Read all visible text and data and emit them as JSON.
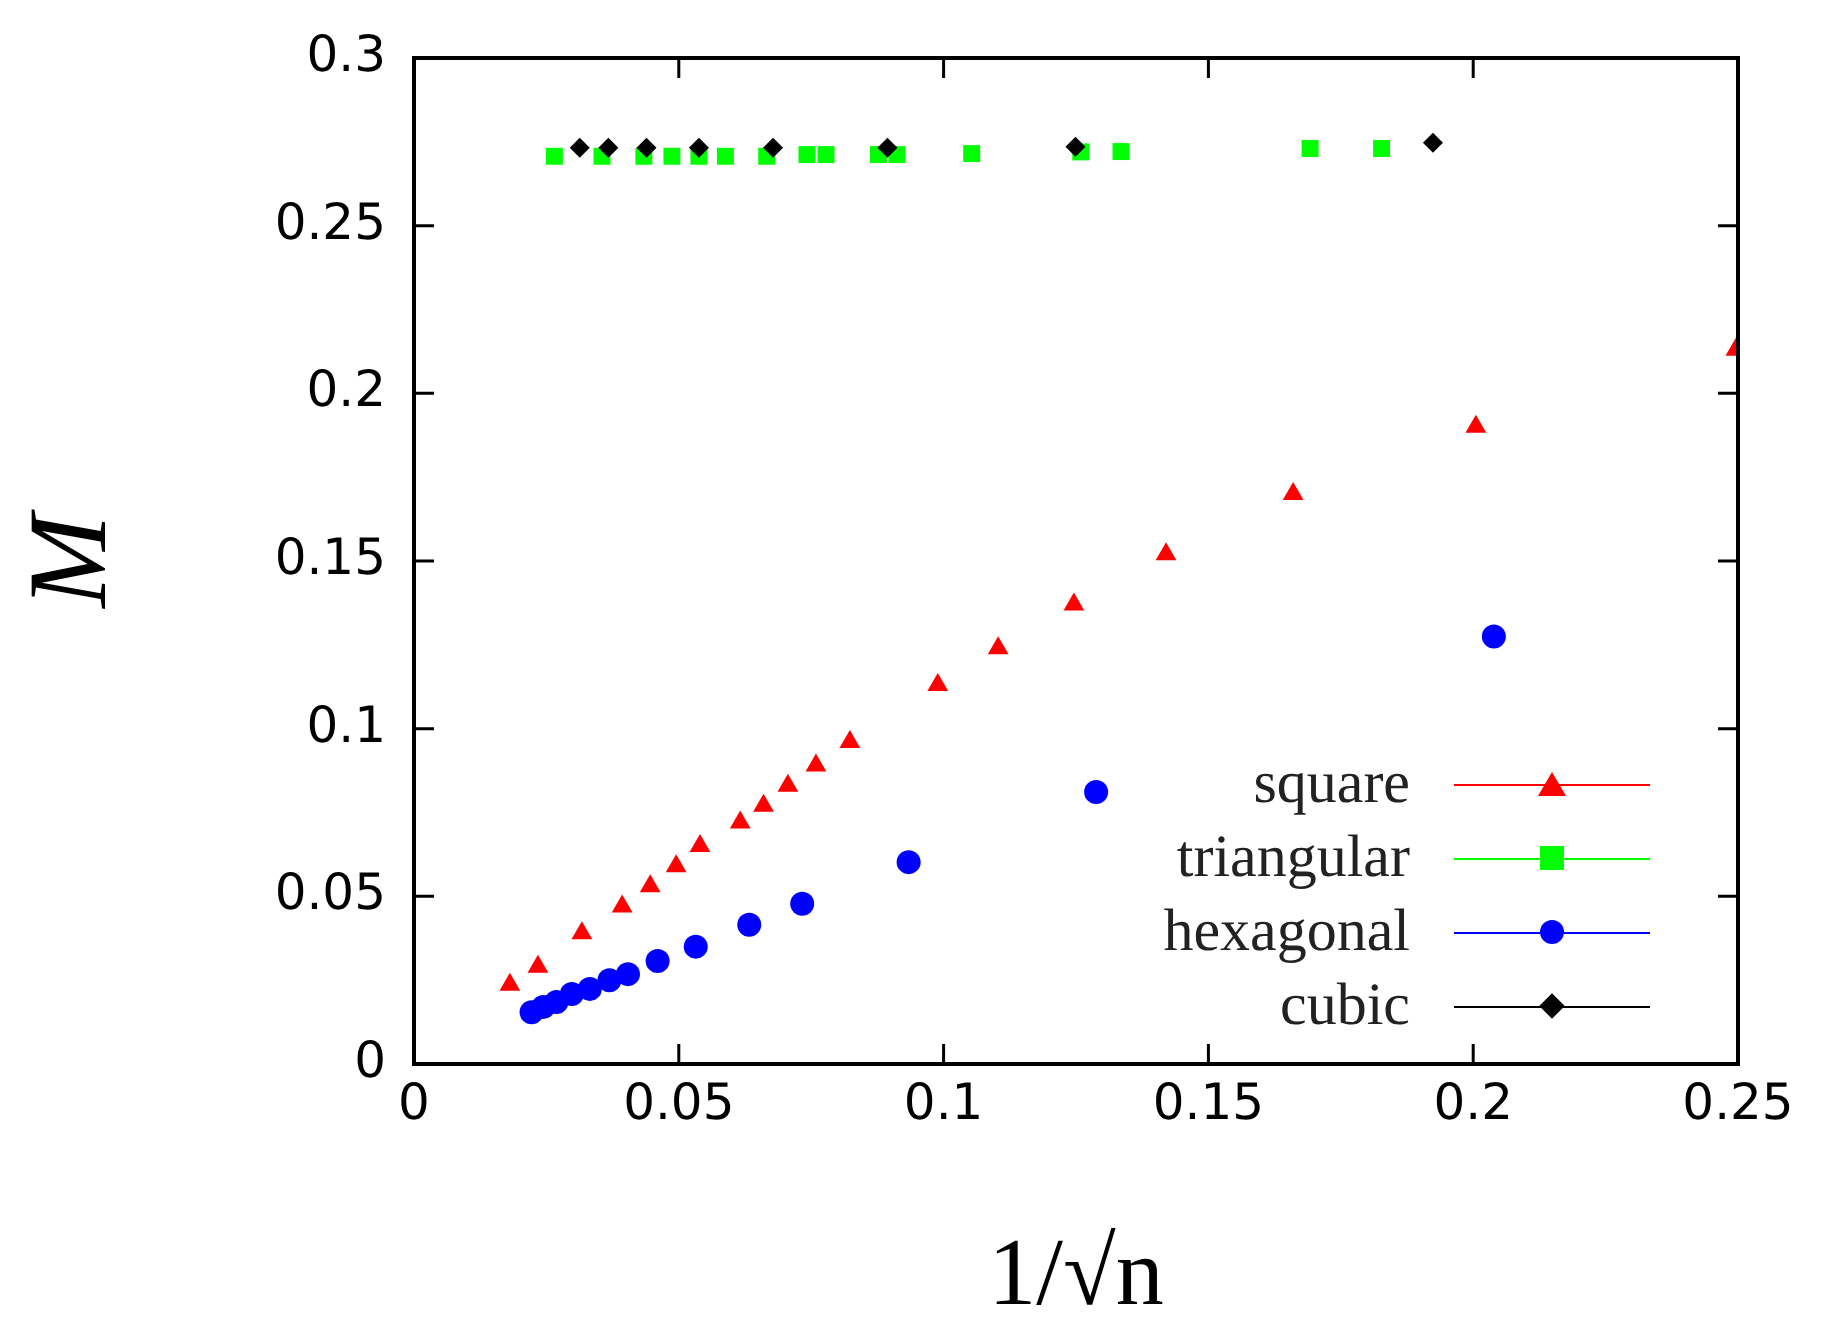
{
  "chart_data": {
    "type": "scatter",
    "xlabel": "1/√n",
    "ylabel": "M",
    "xlim": [
      0,
      0.25
    ],
    "ylim": [
      0,
      0.3
    ],
    "xticks": [
      0,
      0.05,
      0.1,
      0.15,
      0.2,
      0.25
    ],
    "yticks": [
      0,
      0.05,
      0.1,
      0.15,
      0.2,
      0.25,
      0.3
    ],
    "grid": false,
    "legend": "bottom right",
    "series": [
      {
        "name": "square",
        "color": "#ff0000",
        "marker": "triangle",
        "x": [
          0.0181,
          0.0234,
          0.0317,
          0.0393,
          0.0446,
          0.0495,
          0.054,
          0.0616,
          0.066,
          0.0706,
          0.0759,
          0.0823,
          0.0989,
          0.1103,
          0.1246,
          0.142,
          0.166,
          0.2005,
          0.2496
        ],
        "values": [
          0.0236,
          0.029,
          0.039,
          0.047,
          0.053,
          0.059,
          0.065,
          0.072,
          0.077,
          0.083,
          0.089,
          0.096,
          0.113,
          0.124,
          0.137,
          0.152,
          0.17,
          0.19,
          0.213
        ]
      },
      {
        "name": "triangular",
        "color": "#00ff00",
        "marker": "square",
        "x": [
          0.0265,
          0.0355,
          0.0434,
          0.0487,
          0.0538,
          0.0588,
          0.0666,
          0.0742,
          0.0778,
          0.0877,
          0.0912,
          0.1053,
          0.1259,
          0.1335,
          0.1692,
          0.1827
        ],
        "values": [
          0.2707,
          0.2707,
          0.2707,
          0.2707,
          0.2707,
          0.2707,
          0.2707,
          0.2712,
          0.2712,
          0.2712,
          0.2712,
          0.2715,
          0.272,
          0.2721,
          0.273,
          0.273
        ]
      },
      {
        "name": "hexagonal",
        "color": "#0000ff",
        "marker": "circle",
        "x": [
          0.0222,
          0.0244,
          0.0269,
          0.0298,
          0.0332,
          0.0369,
          0.0404,
          0.046,
          0.0532,
          0.0633,
          0.0733,
          0.0934,
          0.1288,
          0.2039
        ],
        "values": [
          0.0154,
          0.017,
          0.0185,
          0.0209,
          0.0224,
          0.025,
          0.0268,
          0.0307,
          0.035,
          0.0415,
          0.0478,
          0.0602,
          0.0811,
          0.1275
        ]
      },
      {
        "name": "cubic",
        "color": "#000000",
        "marker": "diamond",
        "x": [
          0.0313,
          0.0367,
          0.0439,
          0.0538,
          0.0678,
          0.0894,
          0.1249,
          0.1924
        ],
        "values": [
          0.2732,
          0.2732,
          0.2732,
          0.2732,
          0.2732,
          0.2732,
          0.2735,
          0.2747
        ]
      }
    ]
  }
}
